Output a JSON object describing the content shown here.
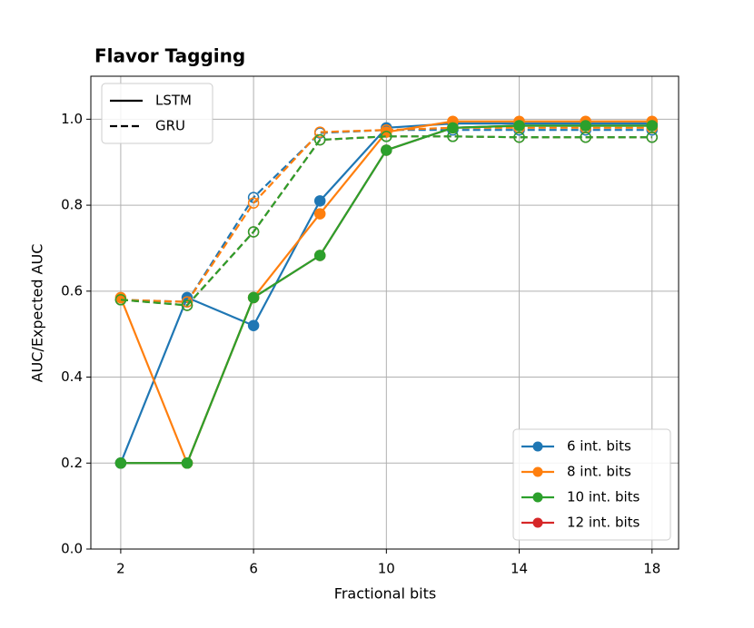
{
  "chart_data": {
    "type": "line",
    "title": "Flavor Tagging",
    "x_label": "Fractional bits",
    "y_label": "AUC/Expected AUC",
    "x": [
      2,
      4,
      6,
      8,
      10,
      12,
      14,
      16,
      18
    ],
    "xlim": [
      1.1,
      18.8
    ],
    "ylim": [
      0,
      1.1
    ],
    "xticks": [
      2,
      6,
      10,
      14,
      18
    ],
    "yticks": [
      {
        "value": 0,
        "label": "0.0"
      },
      0.2,
      0.4,
      0.6,
      0.8,
      {
        "value": 1,
        "label": "1.0"
      }
    ],
    "grid": true,
    "legend_loc": "lower right",
    "line_styles_loc": "upper left",
    "line_styles": [
      {
        "name": "LSTM",
        "dashed": false,
        "filled": true
      },
      {
        "name": "GRU",
        "dashed": true,
        "filled": false
      }
    ],
    "series": [
      {
        "name": "6 int. bits",
        "color": "#1f77b4",
        "lines": [
          {
            "values": [
              0.2,
              0.585,
              0.52,
              0.81,
              0.98,
              0.99,
              0.99,
              0.99,
              0.99
            ]
          },
          {
            "values": [
              0.58,
              0.575,
              0.818,
              0.968,
              0.975,
              0.975,
              0.975,
              0.975,
              0.975
            ]
          }
        ]
      },
      {
        "name": "8 int. bits",
        "color": "#ff7f0e",
        "lines": [
          {
            "values": [
              0.585,
              0.2,
              0.585,
              0.78,
              0.97,
              0.995,
              0.995,
              0.995,
              0.995
            ]
          },
          {
            "values": [
              0.58,
              0.575,
              0.805,
              0.97,
              0.975,
              0.98,
              0.98,
              0.98,
              0.98
            ]
          }
        ]
      },
      {
        "name": "10 int. bits",
        "color": "#2ca02c",
        "lines": [
          {
            "values": [
              0.2,
              0.2,
              0.585,
              0.683,
              0.928,
              0.98,
              0.985,
              0.985,
              0.985
            ]
          },
          {
            "values": [
              0.58,
              0.567,
              0.738,
              0.952,
              0.96,
              0.96,
              0.958,
              0.958,
              0.958
            ]
          }
        ]
      },
      {
        "name": "12 int. bits",
        "color": "#d62728",
        "lines": [
          {
            "values": [
              0.2,
              0.2,
              0.585,
              0.683,
              0.928,
              0.98,
              0.985,
              0.985,
              0.985
            ]
          },
          {
            "values": [
              0.58,
              0.567,
              0.738,
              0.952,
              0.96,
              0.96,
              0.958,
              0.958,
              0.958
            ]
          }
        ]
      }
    ]
  }
}
